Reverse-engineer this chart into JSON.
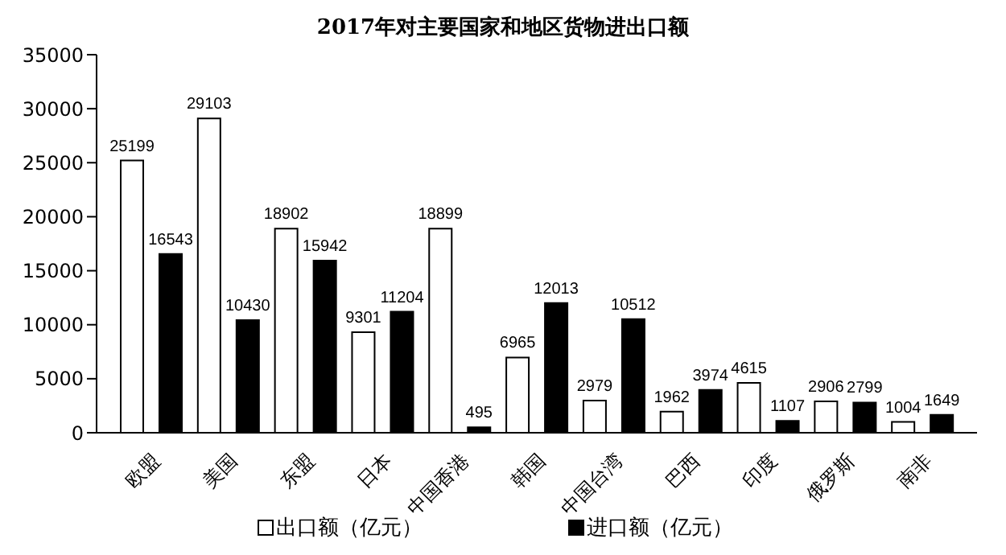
{
  "chart_data": {
    "type": "bar",
    "title": "2017年对主要国家和地区货物进出口额",
    "categories": [
      "欧盟",
      "美国",
      "东盟",
      "日本",
      "中国香港",
      "韩国",
      "中国台湾",
      "巴西",
      "印度",
      "俄罗斯",
      "南非"
    ],
    "series": [
      {
        "name": "出口额（亿元）",
        "color": "#ffffff",
        "values": [
          25199,
          29103,
          18902,
          9301,
          18899,
          6965,
          2979,
          1962,
          4615,
          2906,
          1004
        ]
      },
      {
        "name": "进口额（亿元）",
        "color": "#000000",
        "values": [
          16543,
          10430,
          15942,
          11204,
          495,
          12013,
          10512,
          3974,
          1107,
          2799,
          1649
        ]
      }
    ],
    "ylim": [
      0,
      35000
    ],
    "yticks": [
      0,
      5000,
      10000,
      15000,
      20000,
      25000,
      30000,
      35000
    ],
    "legend": "bottom",
    "data_labels": true
  }
}
